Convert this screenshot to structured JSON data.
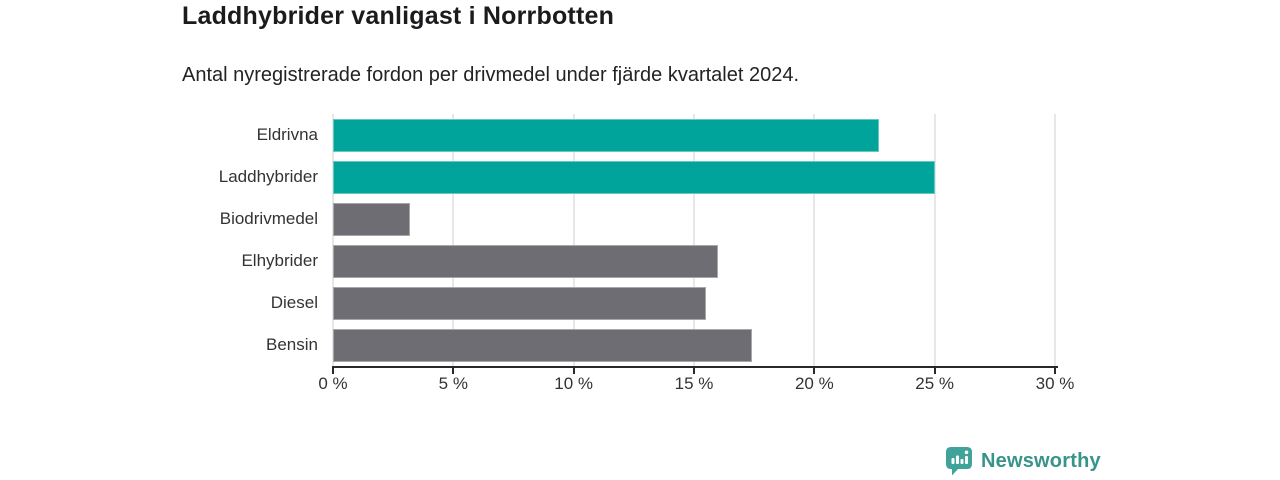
{
  "header": {
    "title": "Laddhybrider vanligast i Norrbotten",
    "subtitle": "Antal nyregistrerade fordon per drivmedel under fjärde kvartalet 2024."
  },
  "chart_data": {
    "type": "bar",
    "orientation": "horizontal",
    "title": "Laddhybrider vanligast i Norrbotten",
    "subtitle": "Antal nyregistrerade fordon per drivmedel under fjärde kvartalet 2024.",
    "categories": [
      "Eldrivna",
      "Laddhybrider",
      "Biodrivmedel",
      "Elhybrider",
      "Diesel",
      "Bensin"
    ],
    "values": [
      22.7,
      25.0,
      3.2,
      16.0,
      15.5,
      17.4
    ],
    "unit": "%",
    "bar_colors": [
      "#00a49a",
      "#00a49a",
      "#6d6d73",
      "#6d6d73",
      "#6d6d73",
      "#6d6d73"
    ],
    "highlight_color": "#00a49a",
    "default_color": "#6d6d73",
    "highlighted_categories": [
      "Eldrivna",
      "Laddhybrider"
    ],
    "xlabel": "",
    "ylabel": "",
    "xlim": [
      0,
      30
    ],
    "x_tick_labels": [
      "0 %",
      "5 %",
      "10 %",
      "15 %",
      "20 %",
      "25 %",
      "30 %"
    ],
    "grid": true,
    "legend": false
  },
  "footer": {
    "brand": "Newsworthy",
    "brand_color": "#38948b",
    "logo_color": "#3fa39a",
    "logo_icon": "bar-chart-exclamation-bubble"
  }
}
